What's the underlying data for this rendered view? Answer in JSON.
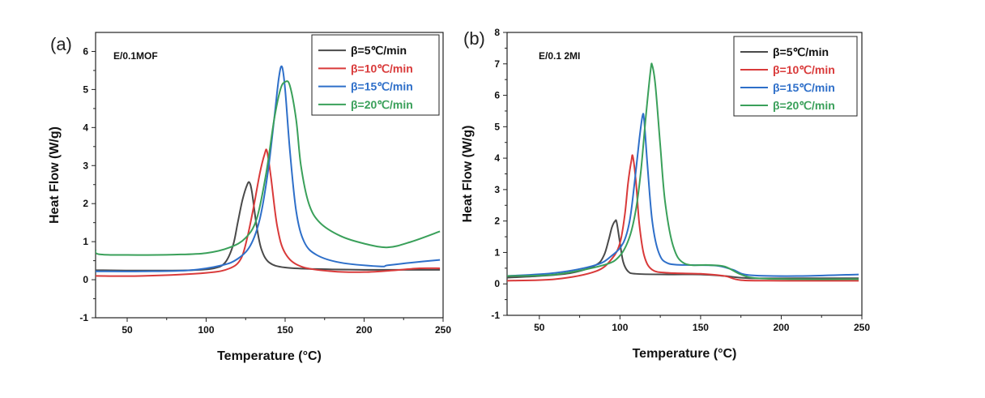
{
  "chart_data": [
    {
      "type": "line",
      "panel_label": "(a)",
      "sample_label": "E/0.1MOF",
      "xlabel": "Temperature (°C)",
      "ylabel": "Heat Flow (W/g)",
      "xlim": [
        30,
        250
      ],
      "ylim": [
        -1,
        6.5
      ],
      "xticks": [
        50,
        100,
        150,
        200,
        250
      ],
      "yticks": [
        -1,
        0,
        1,
        2,
        3,
        4,
        5,
        6
      ],
      "grid": false,
      "legend_position": "top-right",
      "series": [
        {
          "name": "β=5℃/min",
          "color": "#4a4a4a",
          "x": [
            30,
            60,
            90,
            105,
            112,
            117,
            120,
            123,
            126,
            127.5,
            129,
            132,
            135,
            140,
            150,
            170,
            200,
            230,
            248
          ],
          "y": [
            0.25,
            0.24,
            0.25,
            0.3,
            0.45,
            0.9,
            1.5,
            2.1,
            2.5,
            2.55,
            2.3,
            1.4,
            0.8,
            0.45,
            0.32,
            0.28,
            0.26,
            0.26,
            0.26
          ]
        },
        {
          "name": "β=10℃/min",
          "color": "#d93a3a",
          "x": [
            30,
            60,
            100,
            115,
            122,
            126,
            130,
            134,
            137,
            138.5,
            141,
            145,
            150,
            160,
            180,
            200,
            220,
            235,
            248
          ],
          "y": [
            0.1,
            0.1,
            0.18,
            0.3,
            0.55,
            1.1,
            1.9,
            2.8,
            3.3,
            3.38,
            2.7,
            1.4,
            0.7,
            0.35,
            0.22,
            0.2,
            0.25,
            0.3,
            0.3
          ]
        },
        {
          "name": "β=15℃/min",
          "color": "#2e6fc9",
          "x": [
            30,
            60,
            90,
            110,
            120,
            128,
            134,
            139,
            143,
            146,
            148,
            150,
            153,
            157,
            162,
            170,
            185,
            210,
            215,
            230,
            248
          ],
          "y": [
            0.22,
            0.22,
            0.25,
            0.38,
            0.55,
            0.9,
            1.6,
            2.8,
            4.2,
            5.3,
            5.6,
            5.0,
            3.4,
            1.8,
            1.0,
            0.65,
            0.45,
            0.35,
            0.38,
            0.45,
            0.52
          ]
        },
        {
          "name": "β=20℃/min",
          "color": "#3aa05a",
          "x": [
            30,
            32,
            50,
            80,
            100,
            115,
            125,
            132,
            138,
            143,
            147,
            150,
            153,
            157,
            160,
            165,
            172,
            185,
            200,
            215,
            230,
            248
          ],
          "y": [
            0.78,
            0.67,
            0.65,
            0.66,
            0.7,
            0.85,
            1.1,
            1.6,
            2.8,
            4.2,
            5.0,
            5.2,
            5.1,
            4.2,
            3.0,
            2.0,
            1.5,
            1.15,
            0.95,
            0.85,
            1.0,
            1.27
          ]
        }
      ]
    },
    {
      "type": "line",
      "panel_label": "(b)",
      "sample_label": "E/0.1 2MI",
      "xlabel": "Temperature (°C)",
      "ylabel": "Heat Flow (W/g)",
      "xlim": [
        30,
        250
      ],
      "ylim": [
        -1,
        8
      ],
      "xticks": [
        50,
        100,
        150,
        200,
        250
      ],
      "yticks": [
        -1,
        0,
        1,
        2,
        3,
        4,
        5,
        6,
        7,
        8
      ],
      "grid": false,
      "legend_position": "top-right",
      "series": [
        {
          "name": "β=5℃/min",
          "color": "#4a4a4a",
          "x": [
            30,
            50,
            70,
            85,
            90,
            93,
            95,
            97,
            98,
            100,
            102,
            105,
            110,
            130,
            150,
            165,
            180,
            210,
            248
          ],
          "y": [
            0.2,
            0.25,
            0.35,
            0.6,
            0.9,
            1.4,
            1.8,
            2.0,
            1.95,
            1.3,
            0.7,
            0.4,
            0.32,
            0.3,
            0.3,
            0.25,
            0.18,
            0.18,
            0.18
          ]
        },
        {
          "name": "β=10℃/min",
          "color": "#d93a3a",
          "x": [
            30,
            60,
            85,
            95,
            100,
            103,
            105,
            107,
            108,
            110,
            112,
            115,
            120,
            130,
            150,
            165,
            175,
            200,
            248
          ],
          "y": [
            0.1,
            0.15,
            0.4,
            0.8,
            1.3,
            2.2,
            3.2,
            3.9,
            4.05,
            3.2,
            1.9,
            0.9,
            0.45,
            0.35,
            0.32,
            0.25,
            0.12,
            0.1,
            0.1
          ]
        },
        {
          "name": "β=15℃/min",
          "color": "#2e6fc9",
          "x": [
            30,
            60,
            85,
            95,
            102,
            106,
            109,
            112,
            114,
            115,
            117,
            120,
            124,
            130,
            145,
            160,
            170,
            180,
            210,
            248
          ],
          "y": [
            0.25,
            0.35,
            0.6,
            0.9,
            1.3,
            2.0,
            3.2,
            4.6,
            5.35,
            5.2,
            3.8,
            2.0,
            1.0,
            0.65,
            0.6,
            0.58,
            0.45,
            0.28,
            0.25,
            0.3
          ]
        },
        {
          "name": "β=20℃/min",
          "color": "#3aa05a",
          "x": [
            30,
            60,
            90,
            100,
            106,
            110,
            113,
            116,
            119,
            120,
            122,
            125,
            128,
            133,
            140,
            155,
            165,
            175,
            185,
            210,
            248
          ],
          "y": [
            0.25,
            0.3,
            0.6,
            0.9,
            1.5,
            2.4,
            3.6,
            5.3,
            6.8,
            6.95,
            6.3,
            4.4,
            2.6,
            1.2,
            0.65,
            0.6,
            0.55,
            0.3,
            0.18,
            0.15,
            0.15
          ]
        }
      ]
    }
  ]
}
